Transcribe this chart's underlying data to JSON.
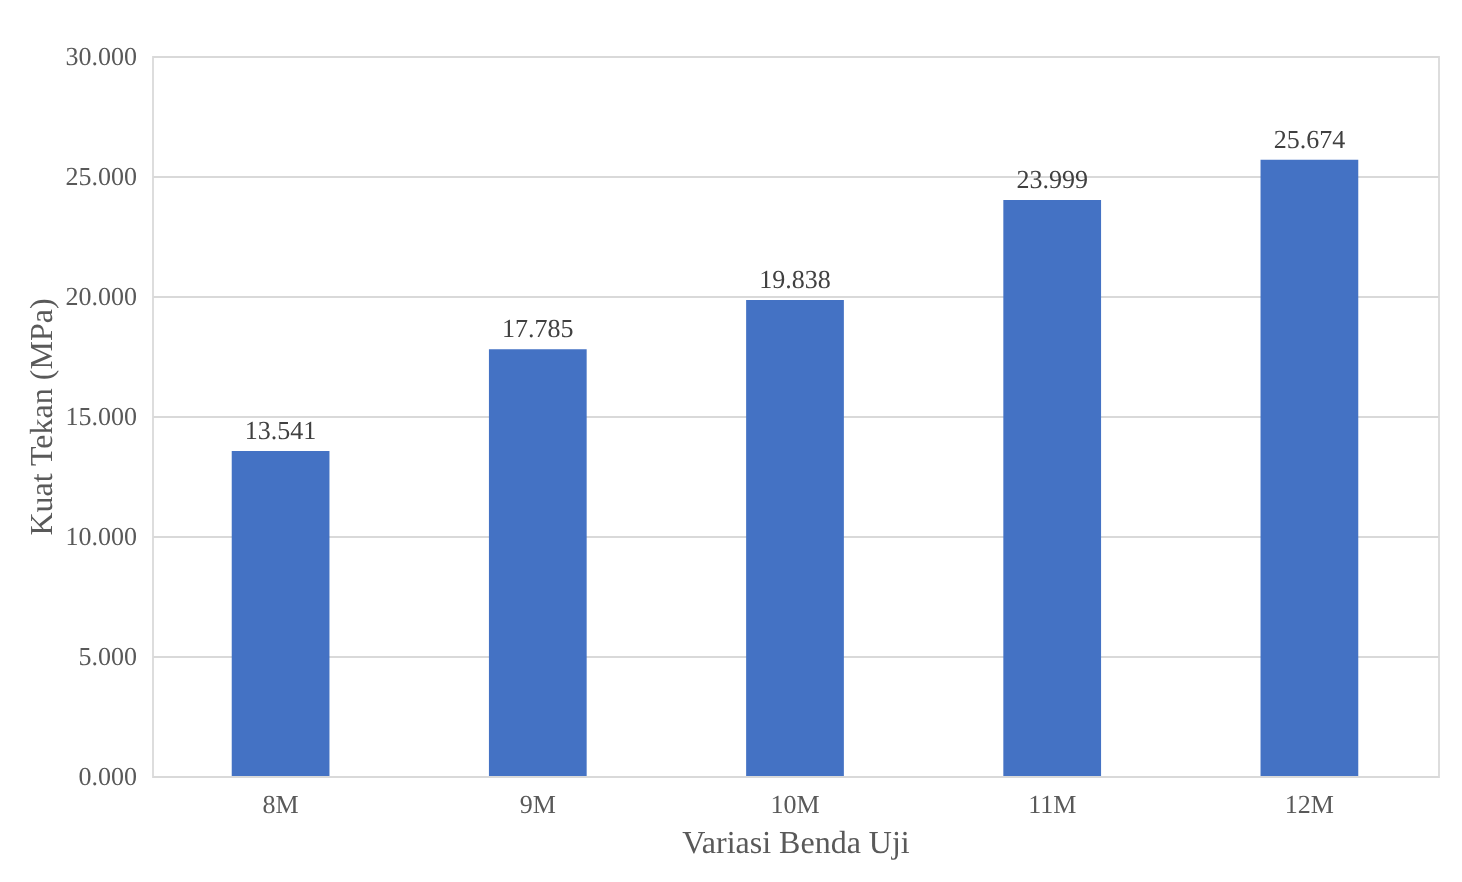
{
  "chart_data": {
    "type": "bar",
    "xlabel": "Variasi Benda Uji",
    "ylabel": "Kuat Tekan (MPa)",
    "categories": [
      "8M",
      "9M",
      "10M",
      "11M",
      "12M"
    ],
    "values": [
      13.541,
      17.785,
      19.838,
      23.999,
      25.674
    ],
    "color": "#4472c4",
    "ylim": [
      0,
      30
    ],
    "yticks": [
      {
        "value": 0,
        "label": "0.000"
      },
      {
        "value": 5,
        "label": "5.000"
      },
      {
        "value": 10,
        "label": "10.000"
      },
      {
        "value": 15,
        "label": "15.000"
      },
      {
        "value": 20,
        "label": "20.000"
      },
      {
        "value": 25,
        "label": "25.000"
      },
      {
        "value": 30,
        "label": "30.000"
      }
    ],
    "grid": "y",
    "data_labels": true
  }
}
